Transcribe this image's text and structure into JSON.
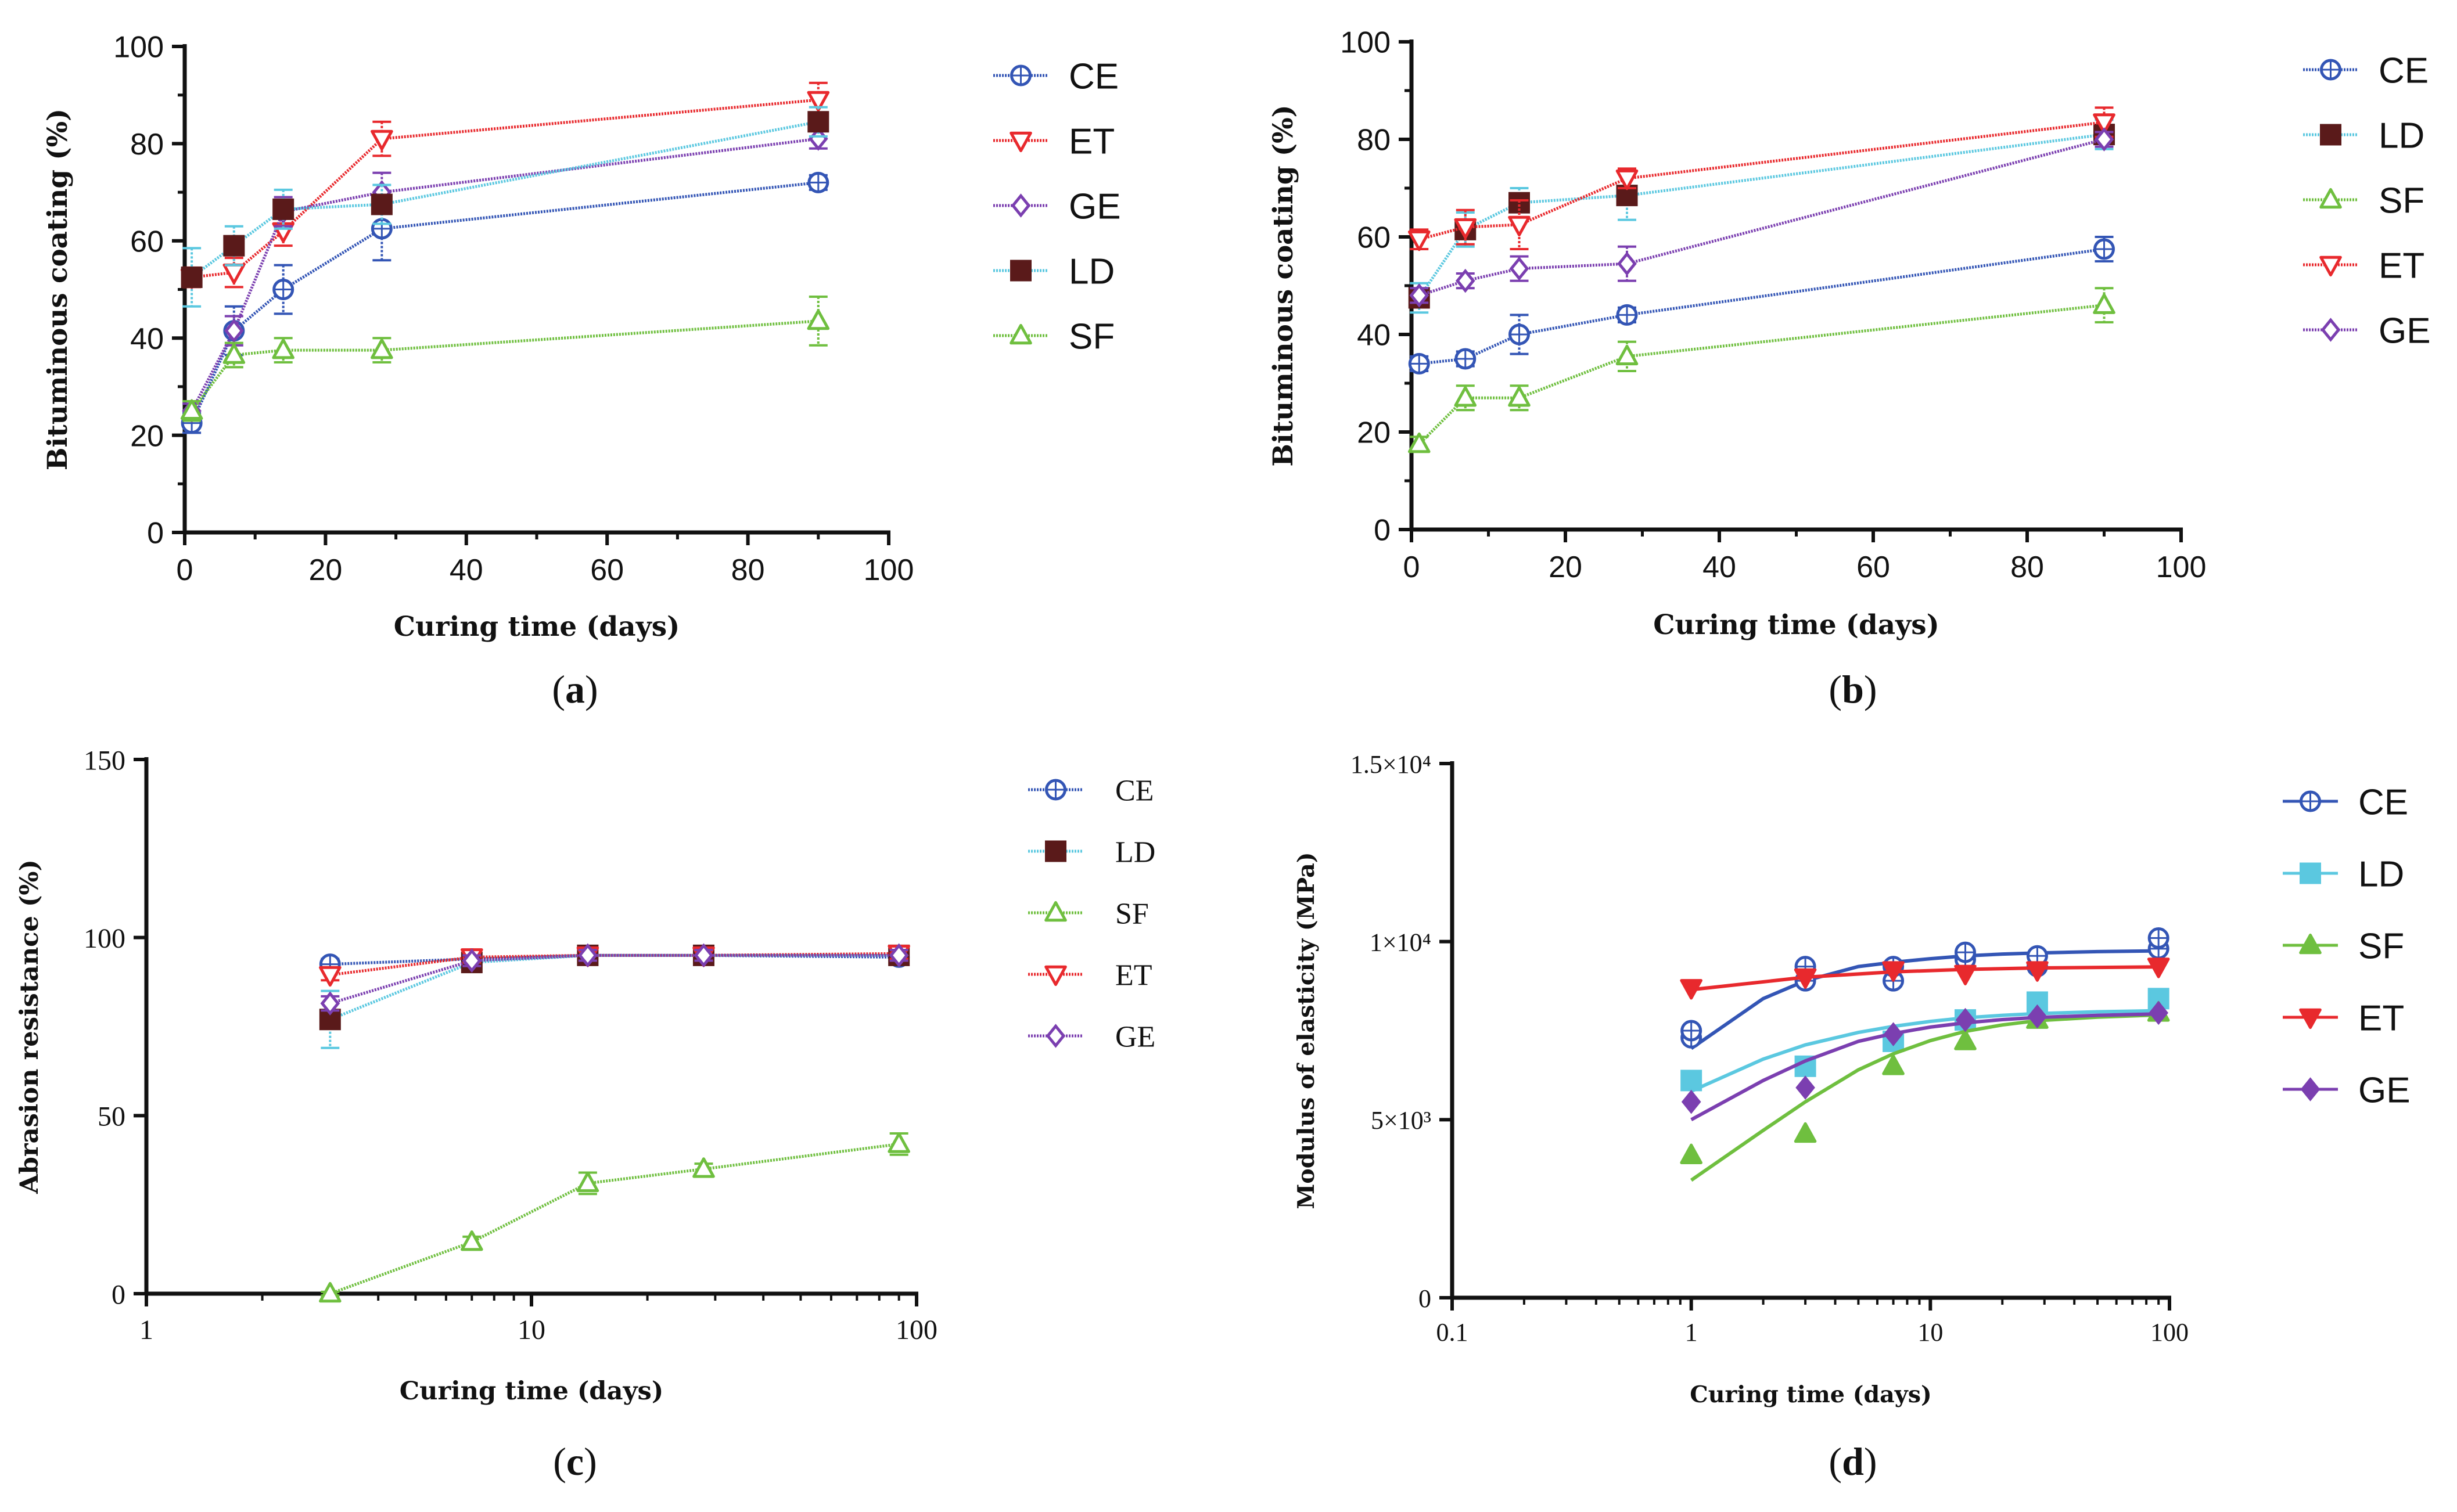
{
  "colors": {
    "CE": "#3355b5",
    "ET": "#e8292d",
    "GE": "#7b3fb0",
    "LD": "#5bc8e0",
    "SF": "#6fbf3f",
    "axis": "#111111"
  },
  "chart_data": [
    {
      "id": "a",
      "caption_letter": "a",
      "type": "line",
      "title": "",
      "xlabel": "Curing time (days)",
      "ylabel": "Bituminous coating (%)",
      "xscale": "linear",
      "xlim": [
        0,
        100
      ],
      "ylim": [
        0,
        100
      ],
      "xticks": [
        0,
        20,
        40,
        60,
        80,
        100
      ],
      "xtick_labels": [
        "0",
        "20",
        "40",
        "60",
        "80",
        "100"
      ],
      "yticks": [
        0,
        20,
        40,
        60,
        80,
        100
      ],
      "ytick_labels": [
        "0",
        "20",
        "40",
        "60",
        "80",
        "100"
      ],
      "legend": [
        "CE",
        "ET",
        "GE",
        "LD",
        "SF"
      ],
      "legend_position": "right",
      "series": [
        {
          "name": "CE",
          "marker": "circle",
          "x": [
            1,
            7,
            14,
            28,
            90
          ],
          "y": [
            22.5,
            41.5,
            50,
            62.5,
            72
          ],
          "err": [
            2,
            5,
            5,
            6.5,
            1.5
          ]
        },
        {
          "name": "ET",
          "marker": "triangle-down",
          "x": [
            1,
            7,
            14,
            28,
            90
          ],
          "y": [
            52.5,
            53.5,
            62,
            81,
            89
          ],
          "err": [
            2,
            3,
            3,
            3.5,
            3.5
          ]
        },
        {
          "name": "GE",
          "marker": "diamond",
          "x": [
            1,
            7,
            14,
            28,
            90
          ],
          "y": [
            25,
            41.5,
            66,
            70,
            81
          ],
          "err": [
            1.5,
            3,
            3,
            4,
            2
          ]
        },
        {
          "name": "LD",
          "marker": "square",
          "x": [
            1,
            7,
            14,
            28,
            90
          ],
          "y": [
            52.5,
            59,
            66.5,
            67.5,
            84.5
          ],
          "err": [
            6,
            4,
            4,
            4,
            3
          ]
        },
        {
          "name": "SF",
          "marker": "triangle-up",
          "x": [
            1,
            7,
            14,
            28,
            90
          ],
          "y": [
            25,
            36.5,
            37.5,
            37.5,
            43.5
          ],
          "err": [
            2,
            2.5,
            2.5,
            2.5,
            5
          ]
        }
      ],
      "fit": false
    },
    {
      "id": "b",
      "caption_letter": "b",
      "type": "line",
      "title": "",
      "xlabel": "Curing time (days)",
      "ylabel": "Bituminous coating (%)",
      "xscale": "linear",
      "xlim": [
        0,
        100
      ],
      "ylim": [
        0,
        100
      ],
      "xticks": [
        0,
        20,
        40,
        60,
        80,
        100
      ],
      "xtick_labels": [
        "0",
        "20",
        "40",
        "60",
        "80",
        "100"
      ],
      "yticks": [
        0,
        20,
        40,
        60,
        80,
        100
      ],
      "ytick_labels": [
        "0",
        "20",
        "40",
        "60",
        "80",
        "100"
      ],
      "legend": [
        "CE",
        "LD",
        "SF",
        "ET",
        "GE"
      ],
      "legend_position": "right",
      "series": [
        {
          "name": "CE",
          "marker": "circle",
          "x": [
            1,
            7,
            14,
            28,
            90
          ],
          "y": [
            34,
            35,
            40,
            44,
            57.5
          ],
          "err": [
            1.5,
            1.5,
            4,
            1.5,
            2.5
          ]
        },
        {
          "name": "LD",
          "marker": "square",
          "x": [
            1,
            7,
            14,
            28,
            90
          ],
          "y": [
            47.5,
            61.5,
            67,
            68.5,
            81
          ],
          "err": [
            3,
            3.5,
            3,
            5,
            3
          ]
        },
        {
          "name": "SF",
          "marker": "triangle-up",
          "x": [
            1,
            7,
            14,
            28,
            90
          ],
          "y": [
            17.5,
            27,
            27,
            35.5,
            46
          ],
          "err": [
            1.5,
            2.5,
            2.5,
            3,
            3.5
          ]
        },
        {
          "name": "ET",
          "marker": "triangle-down",
          "x": [
            1,
            7,
            14,
            28,
            90
          ],
          "y": [
            59.5,
            62,
            62.5,
            72,
            83.5
          ],
          "err": [
            2,
            3.5,
            5,
            2,
            3
          ]
        },
        {
          "name": "GE",
          "marker": "diamond",
          "x": [
            1,
            7,
            14,
            28,
            90
          ],
          "y": [
            48,
            51,
            53.5,
            54.5,
            80
          ],
          "err": [
            1.5,
            1.5,
            2.5,
            3.5,
            1.5
          ]
        }
      ],
      "fit": false
    },
    {
      "id": "c",
      "caption_letter": "c",
      "type": "line",
      "title": "",
      "xlabel": "Curing time (days)",
      "ylabel": "Abrasion resistance (%)",
      "xscale": "log",
      "xlim": [
        1,
        100
      ],
      "ylim": [
        0,
        150
      ],
      "xticks": [
        1,
        10,
        100
      ],
      "xtick_labels": [
        "1",
        "10",
        "100"
      ],
      "yticks": [
        0,
        50,
        100,
        150
      ],
      "ytick_labels": [
        "0",
        "50",
        "100",
        "150"
      ],
      "legend": [
        "CE",
        "LD",
        "SF",
        "ET",
        "GE"
      ],
      "legend_position": "right",
      "series": [
        {
          "name": "CE",
          "marker": "circle",
          "x": [
            3,
            7,
            14,
            28,
            90
          ],
          "y": [
            92.5,
            94,
            95,
            95,
            94.5
          ],
          "err": [
            1.5,
            1.5,
            1.5,
            1.5,
            1.5
          ]
        },
        {
          "name": "LD",
          "marker": "square",
          "x": [
            3,
            7,
            14,
            28,
            90
          ],
          "y": [
            77,
            93,
            95,
            95,
            95
          ],
          "err": [
            8,
            1.5,
            1.5,
            1.5,
            1.5
          ]
        },
        {
          "name": "SF",
          "marker": "triangle-up",
          "x": [
            3,
            7,
            14,
            28,
            90
          ],
          "y": [
            0,
            14.5,
            31,
            35,
            42
          ],
          "err": [
            0.5,
            1.5,
            3,
            1.5,
            3
          ]
        },
        {
          "name": "ET",
          "marker": "triangle-down",
          "x": [
            3,
            7,
            14,
            28,
            90
          ],
          "y": [
            89.5,
            94.5,
            95,
            95,
            95.5
          ],
          "err": [
            1.5,
            1.5,
            1.5,
            1.5,
            1.5
          ]
        },
        {
          "name": "GE",
          "marker": "diamond",
          "x": [
            3,
            7,
            14,
            28,
            90
          ],
          "y": [
            81.5,
            93.5,
            95,
            95,
            95
          ],
          "err": [
            2,
            1.5,
            1.5,
            1.5,
            1.5
          ]
        }
      ],
      "fit": false
    },
    {
      "id": "d",
      "caption_letter": "d",
      "type": "scatter",
      "title": "",
      "xlabel": "Curing time (days)",
      "ylabel": "Modulus of elasticity (MPa)",
      "xscale": "log",
      "xlim": [
        0.1,
        100
      ],
      "ylim": [
        0,
        15000
      ],
      "xticks": [
        0.1,
        1,
        10,
        100
      ],
      "xtick_labels": [
        "0.1",
        "1",
        "10",
        "100"
      ],
      "yticks": [
        0,
        5000,
        10000,
        15000
      ],
      "ytick_labels": [
        "0",
        "5×10³",
        "1×10⁴",
        "1.5×10⁴"
      ],
      "legend": [
        "CE",
        "LD",
        "SF",
        "ET",
        "GE"
      ],
      "legend_position": "right",
      "series": [
        {
          "name": "CE",
          "marker": "circle",
          "x": [
            1,
            1,
            3,
            3,
            7,
            7,
            14,
            14,
            28,
            28,
            90,
            90
          ],
          "y": [
            7300,
            7500,
            8900,
            9300,
            8900,
            9300,
            9500,
            9700,
            9300,
            9600,
            9800,
            10100
          ],
          "fit_x": [
            1,
            2,
            3,
            5,
            7,
            10,
            14,
            20,
            28,
            50,
            90
          ],
          "fit_y": [
            7000,
            8400,
            8900,
            9300,
            9420,
            9520,
            9600,
            9650,
            9680,
            9720,
            9740
          ]
        },
        {
          "name": "LD",
          "marker": "square-filled",
          "x": [
            1,
            3,
            7,
            14,
            28,
            90
          ],
          "y": [
            6100,
            6500,
            7200,
            7800,
            8300,
            8400
          ],
          "fit_x": [
            1,
            2,
            3,
            5,
            7,
            10,
            14,
            20,
            28,
            50,
            90
          ],
          "fit_y": [
            5800,
            6700,
            7100,
            7450,
            7620,
            7760,
            7860,
            7930,
            7980,
            8030,
            8060
          ]
        },
        {
          "name": "SF",
          "marker": "triangle-up-filled",
          "x": [
            1,
            3,
            7,
            14,
            28,
            90
          ],
          "y": [
            4000,
            4600,
            6500,
            7200,
            7800,
            8000
          ],
          "fit_x": [
            1,
            2,
            3,
            5,
            7,
            10,
            14,
            20,
            28,
            50,
            90
          ],
          "fit_y": [
            3300,
            4700,
            5500,
            6400,
            6850,
            7220,
            7480,
            7660,
            7780,
            7880,
            7940
          ]
        },
        {
          "name": "ET",
          "marker": "triangle-down-filled",
          "x": [
            1,
            3,
            7,
            14,
            28,
            90
          ],
          "y": [
            8700,
            9000,
            9200,
            9100,
            9200,
            9300
          ],
          "fit_x": [
            1,
            3,
            7,
            14,
            28,
            90
          ],
          "fit_y": [
            8650,
            9000,
            9150,
            9220,
            9260,
            9290
          ]
        },
        {
          "name": "GE",
          "marker": "diamond-filled",
          "x": [
            1,
            3,
            7,
            14,
            28,
            90
          ],
          "y": [
            5500,
            5900,
            7400,
            7800,
            7900,
            8000
          ],
          "fit_x": [
            1,
            2,
            3,
            5,
            7,
            10,
            14,
            20,
            28,
            50,
            90
          ],
          "fit_y": [
            5000,
            6100,
            6650,
            7200,
            7420,
            7600,
            7720,
            7810,
            7870,
            7930,
            7970
          ]
        }
      ],
      "fit": true
    }
  ]
}
